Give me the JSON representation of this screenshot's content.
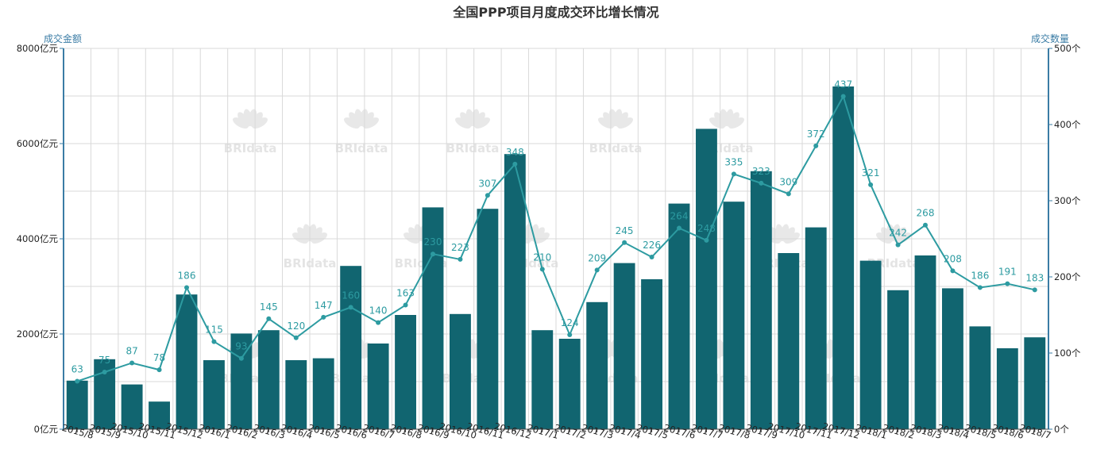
{
  "colors": {
    "bar": "#116570",
    "line": "#2d9ba1",
    "axis": "#3a7ca5",
    "grid": "#d9d9d9",
    "title": "#333333"
  },
  "chart_data": {
    "type": "bar",
    "title": "全国PPP项目月度成交环比增长情况",
    "categories": [
      "2015/8",
      "2015/9",
      "2015/10",
      "2015/11",
      "2015/12",
      "2016/1",
      "2016/2",
      "2016/3",
      "2016/4",
      "2016/5",
      "2016/6",
      "2016/7",
      "2016/8",
      "2016/9",
      "2016/10",
      "2016/11",
      "2016/12",
      "2017/1",
      "2017/2",
      "2017/3",
      "2017/4",
      "2017/5",
      "2017/6",
      "2017/7",
      "2017/8",
      "2017/9",
      "2017/10",
      "2017/11",
      "2017/12",
      "2018/1",
      "2018/2",
      "2018/3",
      "2018/4",
      "2018/5",
      "2018/6",
      "2018/7"
    ],
    "y_left": {
      "label": "成交金额",
      "ylim": [
        0,
        8000
      ],
      "ticks": [
        "0亿元",
        "2000亿元",
        "4000亿元",
        "6000亿元",
        "8000亿元"
      ]
    },
    "y_right": {
      "label": "成交数量",
      "ylim": [
        0,
        500
      ],
      "ticks": [
        "0个",
        "100个",
        "200个",
        "300个",
        "400个",
        "500个"
      ]
    },
    "series": [
      {
        "name": "成交金额",
        "type": "bar",
        "axis": "left",
        "values": [
          1020,
          1470,
          940,
          580,
          2830,
          1450,
          2010,
          2080,
          1450,
          1490,
          3430,
          1800,
          2400,
          4660,
          2420,
          4630,
          5780,
          2080,
          1900,
          2670,
          3490,
          3150,
          4740,
          6310,
          4780,
          5420,
          3700,
          4240,
          7200,
          3540,
          2920,
          3650,
          2960,
          2160,
          1700,
          1930
        ]
      },
      {
        "name": "成交数量",
        "type": "line",
        "axis": "right",
        "values": [
          63,
          75,
          87,
          78,
          186,
          115,
          93,
          145,
          120,
          147,
          160,
          140,
          163,
          230,
          223,
          307,
          348,
          210,
          124,
          209,
          245,
          226,
          264,
          248,
          335,
          323,
          309,
          372,
          437,
          321,
          242,
          268,
          208,
          186,
          191,
          183
        ]
      }
    ],
    "grid": true,
    "watermark": "BRIdata"
  }
}
